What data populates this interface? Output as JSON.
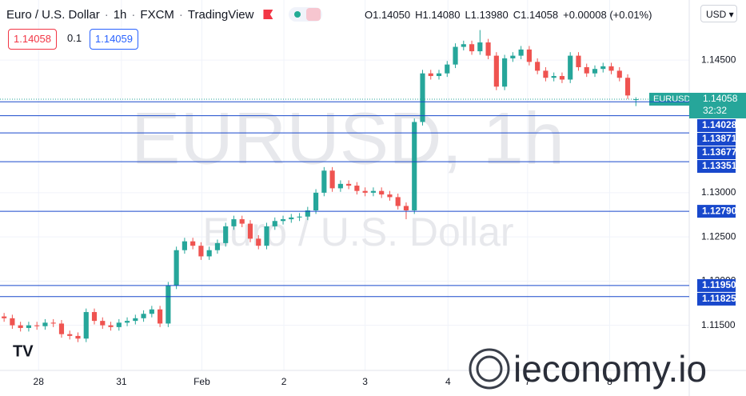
{
  "chart_data": {
    "type": "candlestick",
    "header": {
      "symbol": "Euro / U.S. Dollar",
      "interval": "1h",
      "source": "FXCM",
      "platform": "TradingView",
      "ohlc": [
        "O1.14050",
        "H1.14080",
        "L1.13980",
        "C1.14058"
      ],
      "change": "+0.00008 (+0.01%)"
    },
    "trade": {
      "sell": "1.14058",
      "spread": "0.1",
      "buy": "1.14059"
    },
    "currency": "USD",
    "watermark": [
      "EURUSD, 1h",
      "Euro / U.S. Dollar"
    ],
    "symbol_badge": "EURUSD",
    "countdown": "32:32",
    "brand": "ieconomy.io",
    "up_color": "#26a69a",
    "down_color": "#ef5350",
    "level_color": "#1848cc",
    "grid": true,
    "xlim": [
      -0.5,
      83.5
    ],
    "ylim": [
      1.1099,
      1.1518
    ],
    "xticks": [
      {
        "value": 4.2,
        "label": "28"
      },
      {
        "value": 14.3,
        "label": "31"
      },
      {
        "value": 24.1,
        "label": "Feb"
      },
      {
        "value": 34.1,
        "label": "2"
      },
      {
        "value": 44.0,
        "label": "3"
      },
      {
        "value": 54.1,
        "label": "4"
      },
      {
        "value": 63.8,
        "label": "7"
      },
      {
        "value": 73.8,
        "label": "8"
      }
    ],
    "yticks": [
      {
        "value": 1.115,
        "label": "1.11500"
      },
      {
        "value": 1.12,
        "label": "1.12000"
      },
      {
        "value": 1.125,
        "label": "1.12500"
      },
      {
        "value": 1.13,
        "label": "1.13000"
      },
      {
        "value": 1.145,
        "label": "1.14500"
      }
    ],
    "levels": [
      1.14028,
      1.13871,
      1.13677,
      1.13351,
      {
        "value": 1.1279,
        "label": "1.12790"
      },
      {
        "value": 1.1195,
        "label": "1.11950"
      },
      1.11825
    ],
    "open": [
      1.116,
      1.1158,
      1.115,
      1.1147,
      1.115,
      1.1149,
      1.1153,
      1.1152,
      1.114,
      1.1138,
      1.1135,
      1.1165,
      1.1155,
      1.115,
      1.1148,
      1.1153,
      1.1155,
      1.1158,
      1.1163,
      1.1168,
      1.1152,
      1.1195,
      1.1235,
      1.1245,
      1.124,
      1.1228,
      1.1235,
      1.1243,
      1.1262,
      1.127,
      1.1265,
      1.1248,
      1.124,
      1.1262,
      1.1268,
      1.127,
      1.1272,
      1.1273,
      1.128,
      1.13,
      1.1325,
      1.1305,
      1.131,
      1.1308,
      1.1302,
      1.13,
      1.1302,
      1.1298,
      1.1295,
      1.1285,
      1.128,
      1.138,
      1.1435,
      1.1432,
      1.1435,
      1.1445,
      1.1465,
      1.1468,
      1.146,
      1.147,
      1.1455,
      1.142,
      1.1452,
      1.1455,
      1.1462,
      1.1448,
      1.1438,
      1.143,
      1.1432,
      1.1428,
      1.1455,
      1.1442,
      1.1435,
      1.144,
      1.1443,
      1.1438,
      1.143,
      1.1405
    ],
    "high": [
      1.1164,
      1.1162,
      1.1154,
      1.1154,
      1.1154,
      1.1157,
      1.1157,
      1.1156,
      1.1144,
      1.1142,
      1.1169,
      1.1169,
      1.1159,
      1.1154,
      1.1157,
      1.1159,
      1.1162,
      1.1167,
      1.1172,
      1.1172,
      1.1199,
      1.1239,
      1.1249,
      1.1249,
      1.1244,
      1.1239,
      1.1247,
      1.1266,
      1.1274,
      1.1274,
      1.1269,
      1.1252,
      1.1266,
      1.1272,
      1.1274,
      1.1276,
      1.1277,
      1.1284,
      1.1304,
      1.1329,
      1.1329,
      1.1314,
      1.1314,
      1.1312,
      1.1306,
      1.1306,
      1.1306,
      1.1302,
      1.1299,
      1.1289,
      1.1384,
      1.1439,
      1.1439,
      1.1439,
      1.1449,
      1.1469,
      1.1472,
      1.1472,
      1.1484,
      1.1474,
      1.1459,
      1.1456,
      1.1459,
      1.1466,
      1.1466,
      1.1452,
      1.1442,
      1.1436,
      1.1436,
      1.1459,
      1.1459,
      1.1446,
      1.1444,
      1.1447,
      1.1447,
      1.1442,
      1.1434,
      1.1408
    ],
    "low": [
      1.1154,
      1.1146,
      1.1143,
      1.1143,
      1.1145,
      1.1145,
      1.1148,
      1.1136,
      1.1134,
      1.1131,
      1.1131,
      1.1151,
      1.1146,
      1.1144,
      1.1144,
      1.1149,
      1.1151,
      1.1154,
      1.1159,
      1.1148,
      1.1148,
      1.1191,
      1.1231,
      1.1236,
      1.1224,
      1.1224,
      1.1231,
      1.1239,
      1.1258,
      1.1261,
      1.1244,
      1.1236,
      1.1236,
      1.1258,
      1.1264,
      1.1266,
      1.1268,
      1.1269,
      1.1276,
      1.1296,
      1.1301,
      1.1301,
      1.1304,
      1.1298,
      1.1296,
      1.1296,
      1.1294,
      1.1291,
      1.1281,
      1.127,
      1.1276,
      1.1376,
      1.1428,
      1.1428,
      1.1431,
      1.1441,
      1.1461,
      1.1456,
      1.1456,
      1.1451,
      1.1416,
      1.1416,
      1.1448,
      1.1451,
      1.1444,
      1.1434,
      1.1426,
      1.1426,
      1.1424,
      1.1424,
      1.1438,
      1.1431,
      1.1431,
      1.1436,
      1.1434,
      1.1426,
      1.1406,
      1.1398
    ],
    "close": [
      1.1158,
      1.115,
      1.1147,
      1.115,
      1.1149,
      1.1153,
      1.1152,
      1.114,
      1.1138,
      1.1135,
      1.1165,
      1.1155,
      1.115,
      1.1148,
      1.1153,
      1.1155,
      1.1158,
      1.1163,
      1.1168,
      1.1152,
      1.1195,
      1.1235,
      1.1245,
      1.124,
      1.1228,
      1.1235,
      1.1243,
      1.1262,
      1.127,
      1.1265,
      1.1248,
      1.124,
      1.1262,
      1.1268,
      1.127,
      1.1272,
      1.1273,
      1.128,
      1.13,
      1.1325,
      1.1305,
      1.131,
      1.1308,
      1.1302,
      1.13,
      1.1302,
      1.1298,
      1.1295,
      1.1285,
      1.128,
      1.138,
      1.1435,
      1.1432,
      1.1435,
      1.1445,
      1.1465,
      1.1468,
      1.146,
      1.147,
      1.1455,
      1.142,
      1.1452,
      1.1455,
      1.1462,
      1.1448,
      1.1438,
      1.143,
      1.1432,
      1.1428,
      1.1455,
      1.1442,
      1.1435,
      1.144,
      1.1443,
      1.1438,
      1.143,
      1.141,
      1.14058
    ]
  }
}
